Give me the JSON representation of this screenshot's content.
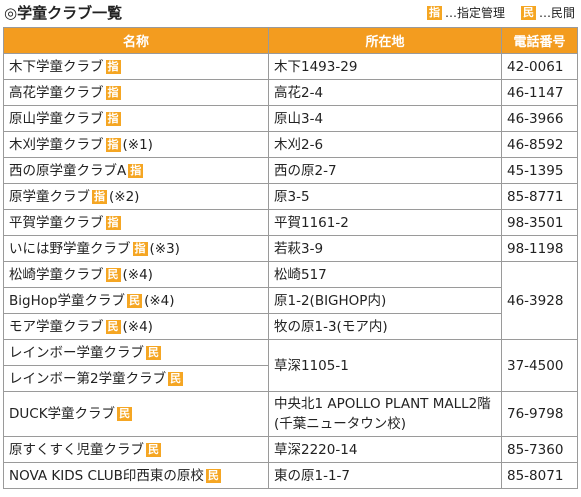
{
  "title": "◎学童クラブ一覧",
  "legend": {
    "designated_badge": "指",
    "designated_text": "…指定管理",
    "private_badge": "民",
    "private_text": "…民間"
  },
  "columns": [
    "名称",
    "所在地",
    "電話番号"
  ],
  "rows": [
    {
      "name": "木下学童クラブ",
      "badge": "指",
      "note": "",
      "address": "木下1493-29",
      "phone": "42-0061"
    },
    {
      "name": "高花学童クラブ",
      "badge": "指",
      "note": "",
      "address": "高花2-4",
      "phone": "46-1147"
    },
    {
      "name": "原山学童クラブ",
      "badge": "指",
      "note": "",
      "address": "原山3-4",
      "phone": "46-3966"
    },
    {
      "name": "木刈学童クラブ",
      "badge": "指",
      "note": "(※1)",
      "address": "木刈2-6",
      "phone": "46-8592"
    },
    {
      "name": "西の原学童クラブA",
      "badge": "指",
      "note": "",
      "address": "西の原2-7",
      "phone": "45-1395"
    },
    {
      "name": "原学童クラブ",
      "badge": "指",
      "note": "(※2)",
      "address": "原3-5",
      "phone": "85-8771"
    },
    {
      "name": "平賀学童クラブ",
      "badge": "指",
      "note": "",
      "address": "平賀1161-2",
      "phone": "98-3501"
    },
    {
      "name": "いには野学童クラブ",
      "badge": "指",
      "note": "(※3)",
      "address": "若萩3-9",
      "phone": "98-1198"
    },
    {
      "name": "松崎学童クラブ",
      "badge": "民",
      "note": "(※4)",
      "address": "松崎517",
      "phone": "46-3928"
    },
    {
      "name": "BigHop学童クラブ",
      "badge": "民",
      "note": "(※4)",
      "address": "原1-2(BIGHOP内)",
      "phone": ""
    },
    {
      "name": "モア学童クラブ",
      "badge": "民",
      "note": "(※4)",
      "address": "牧の原1-3(モア内)",
      "phone": ""
    },
    {
      "name": "レインボー学童クラブ",
      "badge": "民",
      "note": "",
      "address": "草深1105-1",
      "phone": "37-4500"
    },
    {
      "name": "レインボー第2学童クラブ",
      "badge": "民",
      "note": "",
      "address": "",
      "phone": ""
    },
    {
      "name": "DUCK学童クラブ",
      "badge": "民",
      "note": "",
      "address": "中央北1 APOLLO PLANT MALL2階(千葉ニュータウン校)",
      "phone": "76-9798"
    },
    {
      "name": "原すくすく児童クラブ",
      "badge": "民",
      "note": "",
      "address": "草深2220-14",
      "phone": "85-7360"
    },
    {
      "name": "NOVA KIDS CLUB印西東の原校",
      "badge": "民",
      "note": "",
      "address": "東の原1-1-7",
      "phone": "85-8071"
    }
  ]
}
